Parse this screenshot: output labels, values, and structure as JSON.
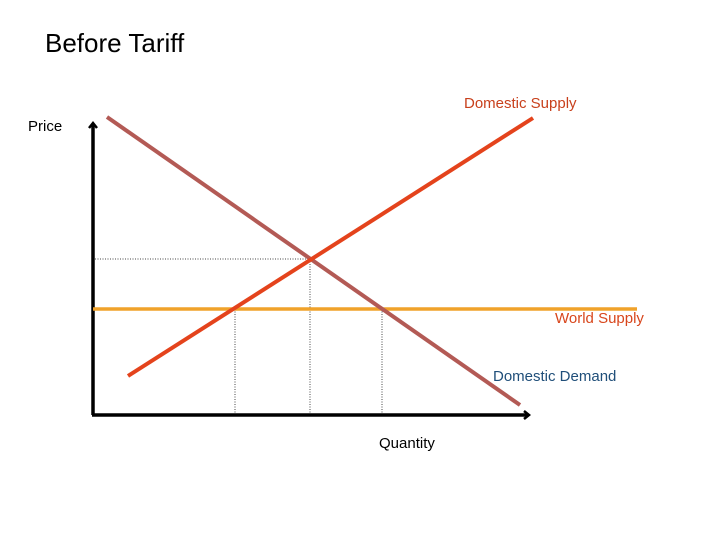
{
  "header": {
    "title": "Before Tariff"
  },
  "axes": {
    "y_label": "Price",
    "x_label": "Quantity"
  },
  "curves": {
    "domestic_supply": "Domestic Supply",
    "world_supply": "World Supply",
    "domestic_demand": "Domestic Demand"
  }
}
